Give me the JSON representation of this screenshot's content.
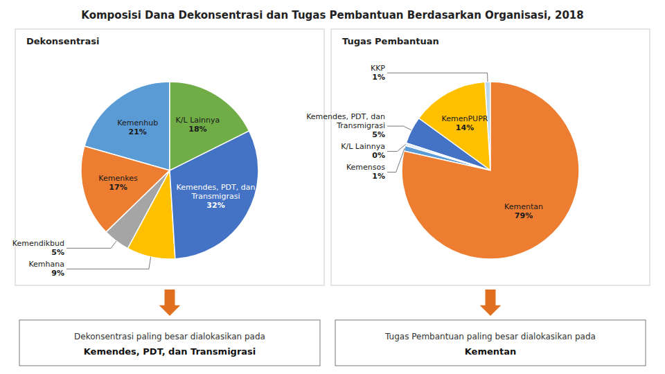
{
  "title": "Komposisi Dana Dekonsentrasi dan Tugas Pembantuan Berdasarkan Organisasi, 2018",
  "chart_data": [
    {
      "type": "pie",
      "title": "Dekonsentrasi",
      "categories": [
        "Kemenhub",
        "Kemenkes",
        "Kemendikbud",
        "Kemhana",
        "Kemendes, PDT, dan Transmigrasi",
        "K/L Lainnya"
      ],
      "values": [
        21,
        17,
        5,
        9,
        32,
        18
      ],
      "value_labels": [
        "21%",
        "17%",
        "5%",
        "9%",
        "32%",
        "18%"
      ],
      "colors": [
        "#5B9BD5",
        "#ED7D31",
        "#A5A5A5",
        "#FFC000",
        "#4472C4",
        "#70AD47"
      ],
      "data_labels": true,
      "annotations": [
        "Dekonsentrasi paling besar dialokasikan pada",
        "Kemendes, PDT, dan Transmigrasi"
      ]
    },
    {
      "type": "pie",
      "title": "Tugas Pembantuan",
      "categories": [
        "KKP",
        "KemenPUPR",
        "Kemendes, PDT, dan Transmigrasi",
        "K/L Lainnya",
        "Kemensos",
        "Kementan"
      ],
      "values": [
        1,
        14,
        5,
        0.5,
        1,
        78.5
      ],
      "value_labels": [
        "1%",
        "14%",
        "5%",
        "0%",
        "1%",
        "79%"
      ],
      "colors": [
        "#BDD7EE",
        "#FFC000",
        "#4472C4",
        "#DDEBF7",
        "#5B9BD5",
        "#ED7D31"
      ],
      "data_labels": true,
      "annotations": [
        "Tugas Pembantuan paling besar dialokasikan pada",
        "Kementan"
      ]
    }
  ]
}
